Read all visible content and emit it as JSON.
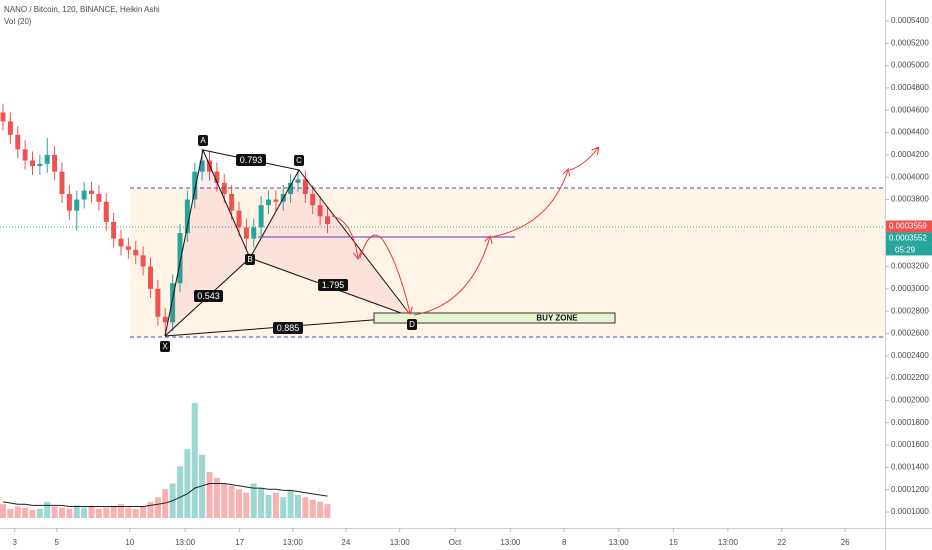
{
  "chart_data": {
    "type": "candlestick",
    "title": "NANO / Bitcoin, 120, BINANCE, Heikin Ashi",
    "volume_label": "Vol (20)",
    "xlim": [
      0,
      120
    ],
    "xticks": [
      {
        "value": 2.0,
        "label": "3"
      },
      {
        "value": 7.7,
        "label": "5"
      },
      {
        "value": 17.6,
        "label": "10"
      },
      {
        "value": 25.1,
        "label": "13:00"
      },
      {
        "value": 32.5,
        "label": "17"
      },
      {
        "value": 39.7,
        "label": "13:00"
      },
      {
        "value": 46.9,
        "label": "24"
      },
      {
        "value": 54.2,
        "label": "13:00"
      },
      {
        "value": 61.7,
        "label": "Oct"
      },
      {
        "value": 69.2,
        "label": "13:00"
      },
      {
        "value": 76.5,
        "label": "8"
      },
      {
        "value": 83.9,
        "label": "13:00"
      },
      {
        "value": 91.3,
        "label": "15"
      },
      {
        "value": 98.7,
        "label": "13:00"
      },
      {
        "value": 106.0,
        "label": "22"
      },
      {
        "value": 114.6,
        "label": "26"
      }
    ],
    "ylim": [
      8.57e-05,
      0.0005588
    ],
    "yticks": [
      {
        "value": 0.0001,
        "label": "0.0001000"
      },
      {
        "value": 0.00012,
        "label": "0.0001200"
      },
      {
        "value": 0.00014,
        "label": "0.0001400"
      },
      {
        "value": 0.00016,
        "label": "0.0001600"
      },
      {
        "value": 0.00018,
        "label": "0.0001800"
      },
      {
        "value": 0.0002,
        "label": "0.0002000"
      },
      {
        "value": 0.00022,
        "label": "0.0002200"
      },
      {
        "value": 0.00024,
        "label": "0.0002400"
      },
      {
        "value": 0.00026,
        "label": "0.0002600"
      },
      {
        "value": 0.00028,
        "label": "0.0002800"
      },
      {
        "value": 0.0003,
        "label": "0.0003000"
      },
      {
        "value": 0.00032,
        "label": "0.0003200"
      },
      {
        "value": 0.00038,
        "label": "0.0003800"
      },
      {
        "value": 0.0004,
        "label": "0.0004000"
      },
      {
        "value": 0.00042,
        "label": "0.0004200"
      },
      {
        "value": 0.00044,
        "label": "0.0004400"
      },
      {
        "value": 0.00046,
        "label": "0.0004600"
      },
      {
        "value": 0.00048,
        "label": "0.0004800"
      },
      {
        "value": 0.0005,
        "label": "0.0005000"
      },
      {
        "value": 0.00052,
        "label": "0.0005200"
      },
      {
        "value": 0.00054,
        "label": "0.0005400"
      }
    ],
    "up_color": "#26a69a",
    "down_color": "#ef5350",
    "x": [
      0,
      1,
      2,
      3,
      4,
      5,
      6,
      7,
      8,
      9,
      10,
      11,
      12,
      13,
      14,
      15,
      16,
      17,
      18,
      19,
      20,
      21,
      22,
      23,
      24,
      25,
      26,
      27,
      28,
      29,
      30,
      31,
      32,
      33,
      34,
      35,
      36,
      37,
      38,
      39,
      40,
      41,
      42,
      43,
      44
    ],
    "open": [
      0.000458,
      0.00045,
      0.000438,
      0.000425,
      0.000415,
      0.00041,
      0.000412,
      0.00042,
      0.000405,
      0.000385,
      0.00037,
      0.00038,
      0.000388,
      0.000385,
      0.000378,
      0.00036,
      0.000345,
      0.000338,
      0.000335,
      0.00033,
      0.00032,
      0.0003,
      0.000275,
      0.00027,
      0.000305,
      0.00035,
      0.00038,
      0.000405,
      0.000415,
      0.000405,
      0.000395,
      0.000385,
      0.00037,
      0.000355,
      0.000345,
      0.000355,
      0.000375,
      0.00038,
      0.000378,
      0.000385,
      0.000395,
      0.000398,
      0.000385,
      0.000375,
      0.000365
    ],
    "high": [
      0.000466,
      0.000458,
      0.000446,
      0.000433,
      0.000423,
      0.00042,
      0.000435,
      0.000428,
      0.000413,
      0.000393,
      0.000388,
      0.000396,
      0.000396,
      0.000393,
      0.000386,
      0.000368,
      0.000353,
      0.000346,
      0.000343,
      0.000338,
      0.000328,
      0.000308,
      0.000283,
      0.000313,
      0.000358,
      0.000388,
      0.000413,
      0.000425,
      0.000423,
      0.000413,
      0.000403,
      0.000393,
      0.000378,
      0.000363,
      0.000363,
      0.000383,
      0.000388,
      0.000388,
      0.000393,
      0.000403,
      0.000406,
      0.000406,
      0.000393,
      0.000383,
      0.000373
    ],
    "low": [
      0.000442,
      0.00043,
      0.000417,
      0.000407,
      0.000402,
      0.000402,
      0.000404,
      0.000397,
      0.000377,
      0.000362,
      0.000352,
      0.000372,
      0.000377,
      0.00037,
      0.000352,
      0.000337,
      0.00033,
      0.000327,
      0.000322,
      0.000312,
      0.000292,
      0.000267,
      0.000258,
      0.000262,
      0.000297,
      0.000342,
      0.000372,
      0.000397,
      0.000397,
      0.000387,
      0.000377,
      0.000362,
      0.000347,
      0.000335,
      0.000337,
      0.000347,
      0.000367,
      0.00037,
      0.00037,
      0.000377,
      0.000387,
      0.000377,
      0.000367,
      0.000357,
      0.00035
    ],
    "close": [
      0.00045,
      0.000438,
      0.000425,
      0.000415,
      0.00041,
      0.000412,
      0.00042,
      0.000405,
      0.000385,
      0.00037,
      0.00038,
      0.000388,
      0.000385,
      0.000378,
      0.00036,
      0.000345,
      0.000338,
      0.000335,
      0.00033,
      0.00032,
      0.0003,
      0.000275,
      0.00027,
      0.000305,
      0.00035,
      0.00038,
      0.000405,
      0.000415,
      0.000405,
      0.000395,
      0.000385,
      0.00037,
      0.000355,
      0.000345,
      0.000355,
      0.000375,
      0.00038,
      0.000378,
      0.000385,
      0.000395,
      0.000398,
      0.000385,
      0.000375,
      0.000365,
      0.000358
    ],
    "vlim": [
      0,
      100
    ],
    "volume": [
      12,
      8,
      10,
      9,
      7,
      8,
      14,
      10,
      9,
      8,
      11,
      9,
      10,
      8,
      9,
      10,
      12,
      9,
      8,
      10,
      14,
      18,
      25,
      30,
      45,
      60,
      100,
      55,
      40,
      35,
      30,
      28,
      25,
      22,
      30,
      26,
      20,
      22,
      18,
      24,
      20,
      18,
      16,
      14,
      12
    ],
    "volume_ma": [
      14,
      13,
      12,
      12,
      11,
      11,
      11,
      11,
      11,
      10,
      10,
      10,
      10,
      10,
      10,
      10,
      10,
      10,
      10,
      10,
      11,
      12,
      13,
      15,
      18,
      21,
      26,
      28,
      30,
      30,
      30,
      29,
      28,
      27,
      26,
      26,
      25,
      25,
      24,
      24,
      23,
      22,
      21,
      20,
      19
    ],
    "last_price": 0.0003559,
    "prev_price": 0.0003552,
    "countdown": "05:29"
  },
  "annotations": {
    "points": [
      "X",
      "A",
      "B",
      "C",
      "D"
    ],
    "ratios": [
      "0.793",
      "0.543",
      "1.795",
      "0.885"
    ],
    "zone": "BUY ZONE"
  }
}
